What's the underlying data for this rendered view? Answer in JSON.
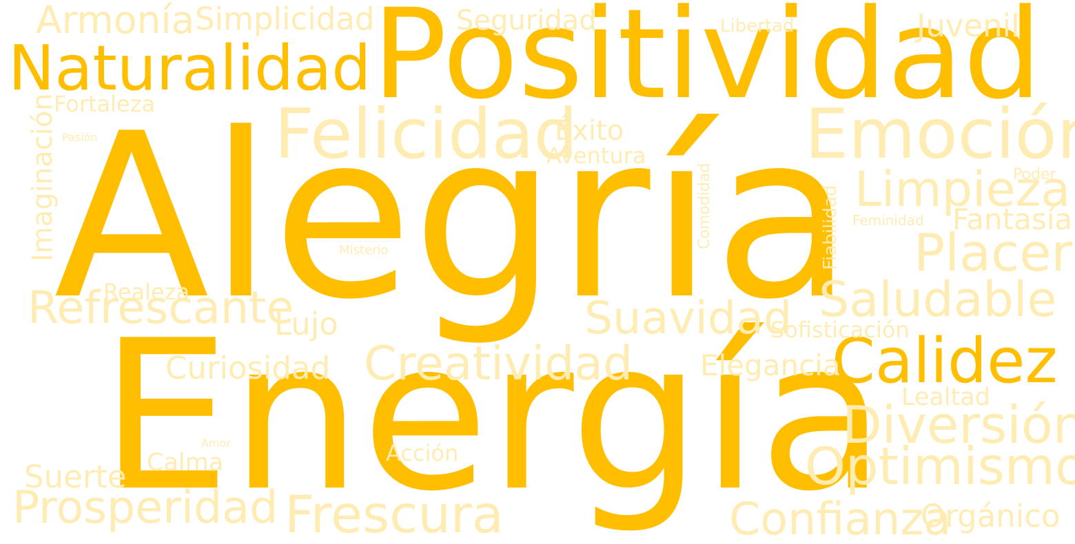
{
  "colors": {
    "strong": "#FFBF00",
    "light": "#FFECB3",
    "background": "#FFFFFF"
  },
  "words": [
    {
      "text": "Alegría",
      "weight": "strong",
      "orientation": "horizontal"
    },
    {
      "text": "Energía",
      "weight": "strong",
      "orientation": "horizontal"
    },
    {
      "text": "Positividad",
      "weight": "strong",
      "orientation": "horizontal"
    },
    {
      "text": "Naturalidad",
      "weight": "strong",
      "orientation": "horizontal"
    },
    {
      "text": "Calidez",
      "weight": "strong",
      "orientation": "horizontal"
    },
    {
      "text": "Armonía",
      "weight": "light",
      "orientation": "horizontal"
    },
    {
      "text": "Simplicidad",
      "weight": "light",
      "orientation": "horizontal"
    },
    {
      "text": "Seguridad",
      "weight": "light",
      "orientation": "horizontal"
    },
    {
      "text": "Libertad",
      "weight": "light",
      "orientation": "horizontal"
    },
    {
      "text": "Juvenil",
      "weight": "light",
      "orientation": "horizontal"
    },
    {
      "text": "Fortaleza",
      "weight": "light",
      "orientation": "horizontal"
    },
    {
      "text": "Imaginación",
      "weight": "light",
      "orientation": "vertical"
    },
    {
      "text": "Pasión",
      "weight": "light",
      "orientation": "horizontal"
    },
    {
      "text": "Felicidad",
      "weight": "light",
      "orientation": "horizontal"
    },
    {
      "text": "Éxito",
      "weight": "light",
      "orientation": "horizontal"
    },
    {
      "text": "Aventura",
      "weight": "light",
      "orientation": "horizontal"
    },
    {
      "text": "Emoción",
      "weight": "light",
      "orientation": "horizontal"
    },
    {
      "text": "Comodidad",
      "weight": "light",
      "orientation": "vertical"
    },
    {
      "text": "Fiabilidad",
      "weight": "light",
      "orientation": "vertical"
    },
    {
      "text": "Poder",
      "weight": "light",
      "orientation": "horizontal"
    },
    {
      "text": "Limpieza",
      "weight": "light",
      "orientation": "horizontal"
    },
    {
      "text": "Feminidad",
      "weight": "light",
      "orientation": "horizontal"
    },
    {
      "text": "Fantasía",
      "weight": "light",
      "orientation": "horizontal"
    },
    {
      "text": "Placer",
      "weight": "light",
      "orientation": "horizontal"
    },
    {
      "text": "Misterio",
      "weight": "light",
      "orientation": "horizontal"
    },
    {
      "text": "Realeza",
      "weight": "light",
      "orientation": "horizontal"
    },
    {
      "text": "Refrescante",
      "weight": "light",
      "orientation": "horizontal"
    },
    {
      "text": "Lujo",
      "weight": "light",
      "orientation": "horizontal"
    },
    {
      "text": "Saludable",
      "weight": "light",
      "orientation": "horizontal"
    },
    {
      "text": "Suavidad",
      "weight": "light",
      "orientation": "horizontal"
    },
    {
      "text": "Sofisticación",
      "weight": "light",
      "orientation": "horizontal"
    },
    {
      "text": "Curiosidad",
      "weight": "light",
      "orientation": "horizontal"
    },
    {
      "text": "Creatividad",
      "weight": "light",
      "orientation": "horizontal"
    },
    {
      "text": "Elegancia",
      "weight": "light",
      "orientation": "horizontal"
    },
    {
      "text": "Lealtad",
      "weight": "light",
      "orientation": "horizontal"
    },
    {
      "text": "Diversión",
      "weight": "light",
      "orientation": "horizontal"
    },
    {
      "text": "Amor",
      "weight": "light",
      "orientation": "horizontal"
    },
    {
      "text": "Acción",
      "weight": "light",
      "orientation": "horizontal"
    },
    {
      "text": "Calma",
      "weight": "light",
      "orientation": "horizontal"
    },
    {
      "text": "Suerte",
      "weight": "light",
      "orientation": "horizontal"
    },
    {
      "text": "Optimismo",
      "weight": "light",
      "orientation": "horizontal"
    },
    {
      "text": "Prosperidad",
      "weight": "light",
      "orientation": "horizontal"
    },
    {
      "text": "Frescura",
      "weight": "light",
      "orientation": "horizontal"
    },
    {
      "text": "Confianza",
      "weight": "light",
      "orientation": "horizontal"
    },
    {
      "text": "Orgánico",
      "weight": "light",
      "orientation": "horizontal"
    }
  ]
}
